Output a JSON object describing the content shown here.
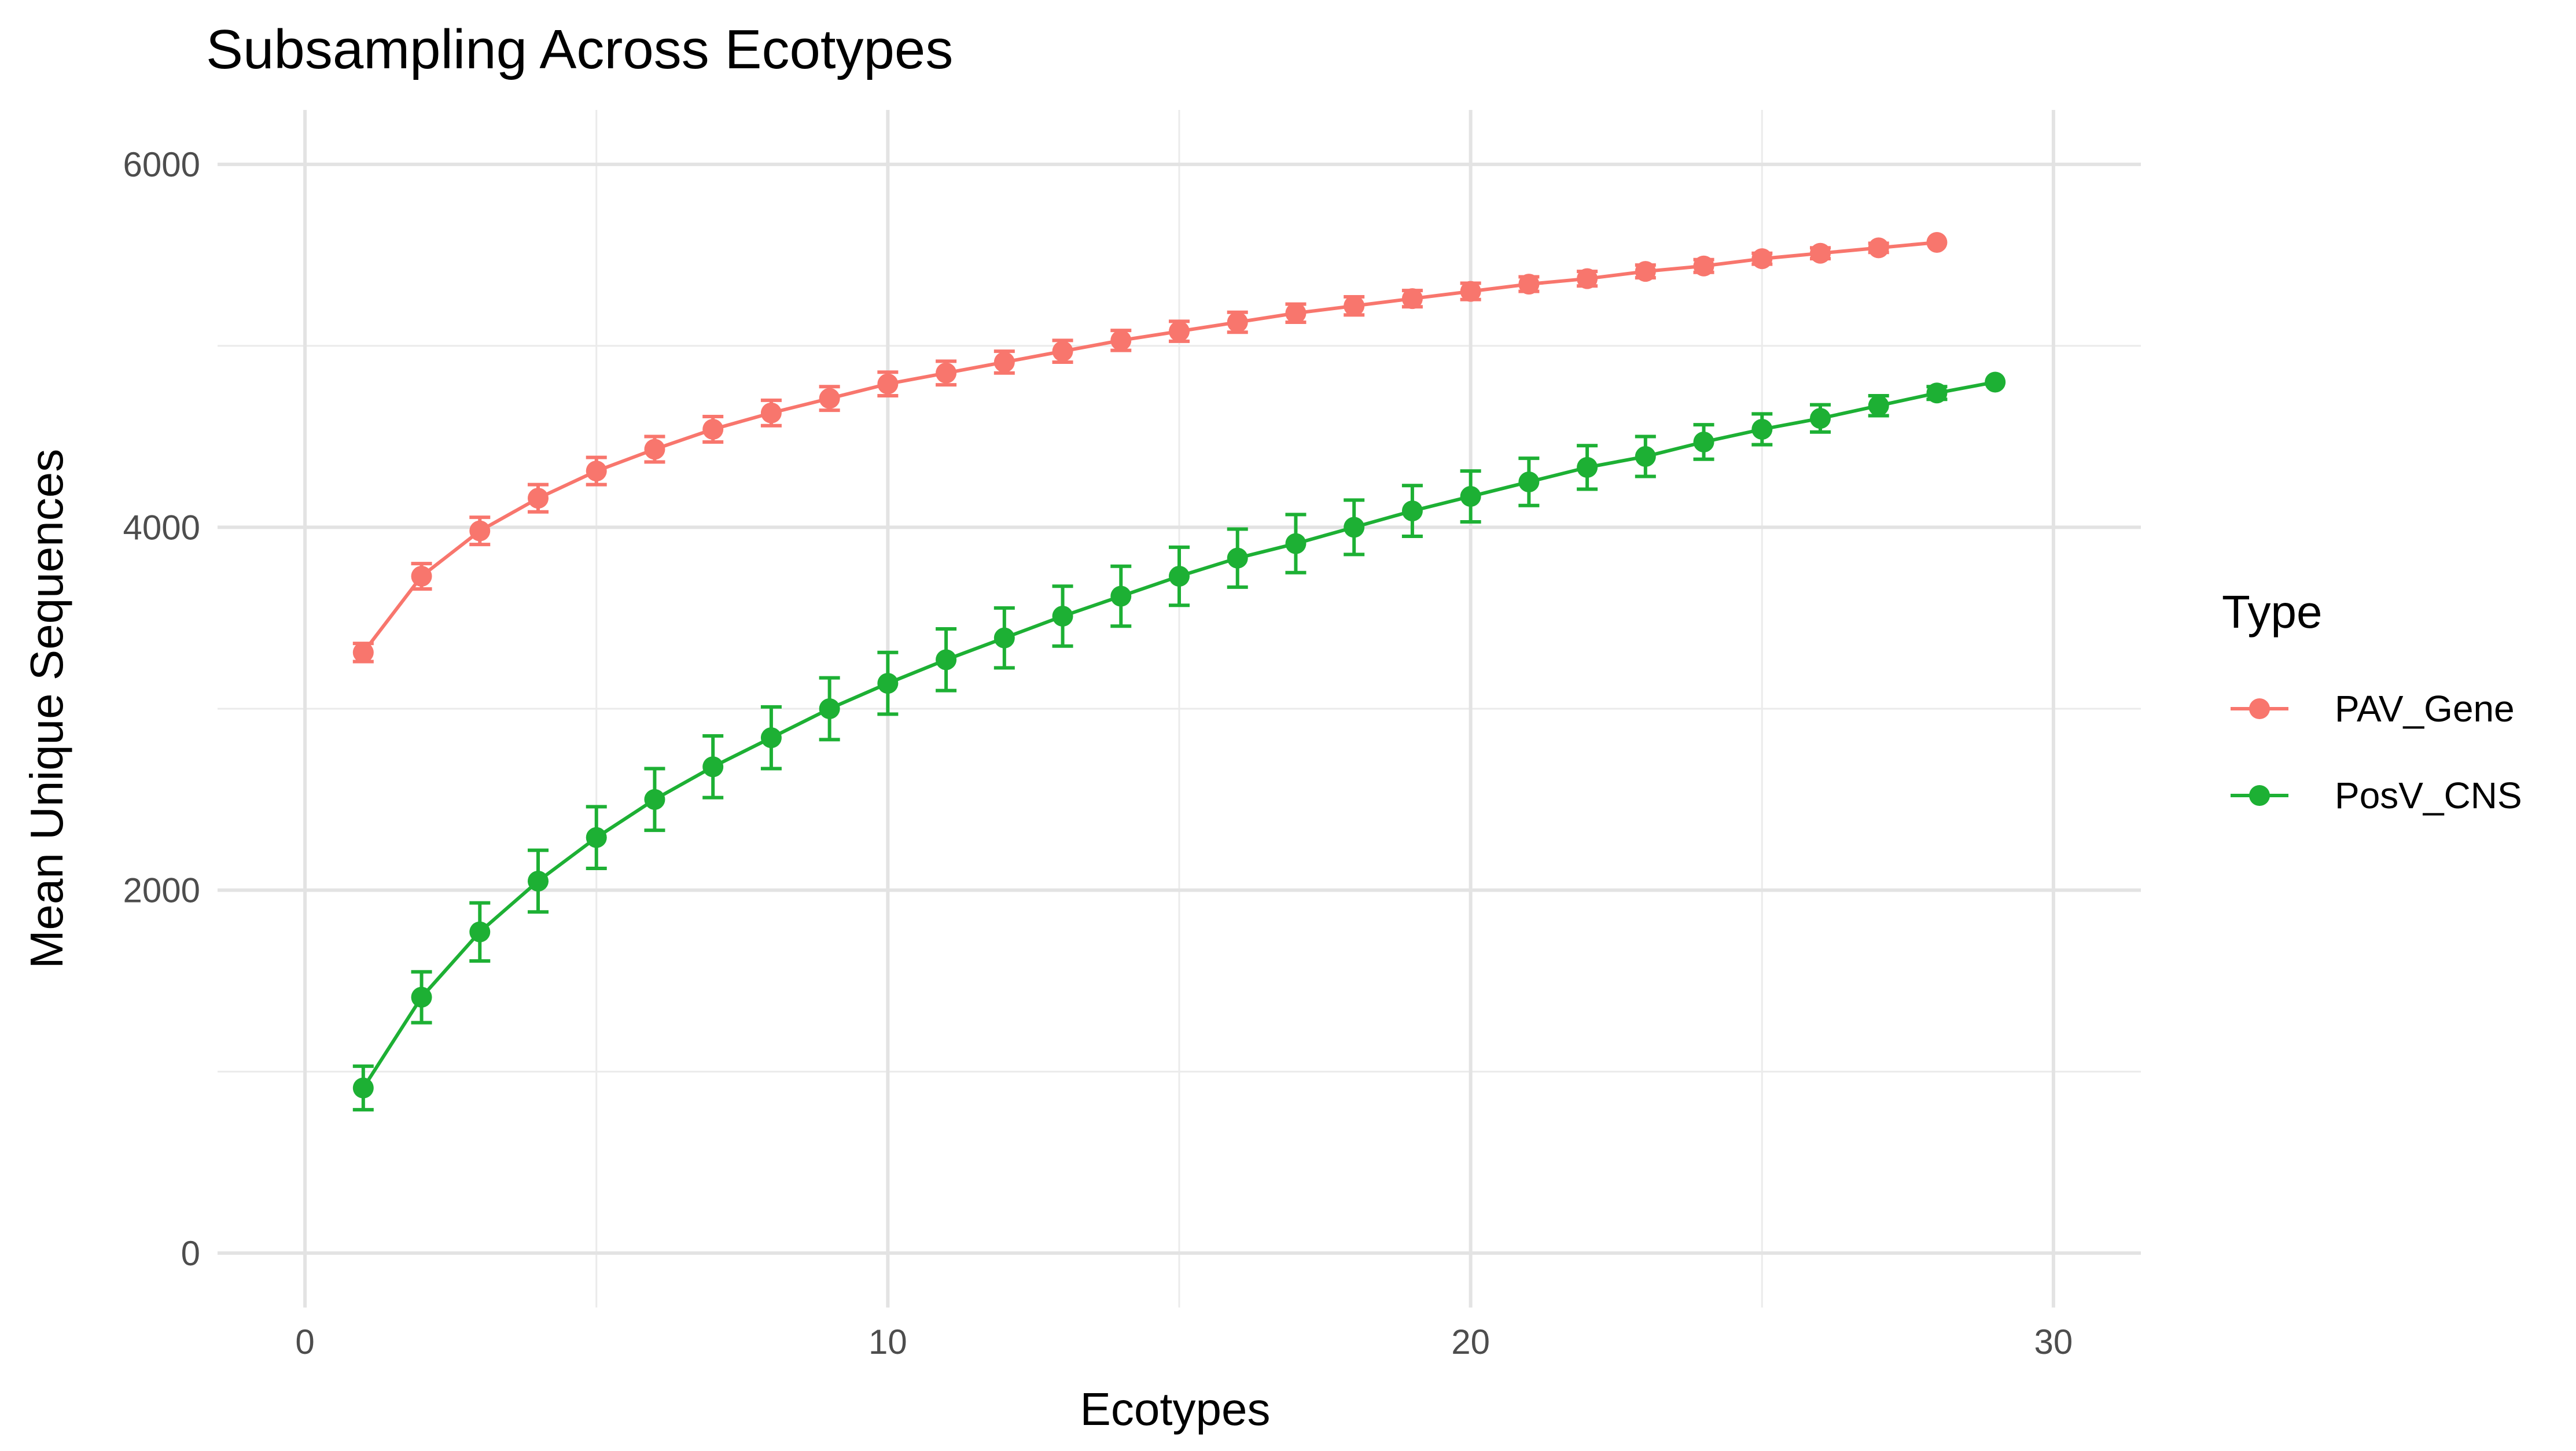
{
  "chart_data": {
    "type": "line",
    "title": "Subsampling Across Ecotypes",
    "xlabel": "Ecotypes",
    "ylabel": "Mean Unique Sequences",
    "xlim": [
      -1.5,
      31.5
    ],
    "ylim": [
      -300,
      6300
    ],
    "x_ticks": [
      0,
      10,
      20,
      30
    ],
    "y_ticks": [
      0,
      2000,
      4000,
      6000
    ],
    "x_tick_labels": [
      "0",
      "10",
      "20",
      "30"
    ],
    "y_tick_labels": [
      "0",
      "2000",
      "4000",
      "6000"
    ],
    "grid": true,
    "legend": {
      "title": "Type",
      "position": "right"
    },
    "series": [
      {
        "name": "PAV_Gene",
        "color": "#F8766D",
        "x": [
          1,
          2,
          3,
          4,
          5,
          6,
          7,
          8,
          9,
          10,
          11,
          12,
          13,
          14,
          15,
          16,
          17,
          18,
          19,
          20,
          21,
          22,
          23,
          24,
          25,
          26,
          27,
          28
        ],
        "y": [
          3310,
          3730,
          3980,
          4160,
          4310,
          4430,
          4540,
          4630,
          4710,
          4790,
          4850,
          4910,
          4970,
          5030,
          5080,
          5130,
          5180,
          5220,
          5260,
          5300,
          5340,
          5370,
          5410,
          5440,
          5480,
          5510,
          5540,
          5570
        ],
        "err": [
          50,
          70,
          75,
          75,
          75,
          70,
          70,
          70,
          65,
          65,
          65,
          60,
          60,
          55,
          55,
          55,
          50,
          50,
          45,
          45,
          40,
          40,
          35,
          35,
          30,
          30,
          25,
          0
        ]
      },
      {
        "name": "PosV_CNS",
        "color": "#1DB034",
        "x": [
          1,
          2,
          3,
          4,
          5,
          6,
          7,
          8,
          9,
          10,
          11,
          12,
          13,
          14,
          15,
          16,
          17,
          18,
          19,
          20,
          21,
          22,
          23,
          24,
          25,
          26,
          27,
          28,
          29
        ],
        "y": [
          910,
          1410,
          1770,
          2050,
          2290,
          2500,
          2680,
          2840,
          3000,
          3140,
          3270,
          3390,
          3510,
          3620,
          3730,
          3830,
          3910,
          4000,
          4090,
          4170,
          4250,
          4330,
          4390,
          4470,
          4540,
          4600,
          4670,
          4740,
          4800
        ],
        "err": [
          120,
          140,
          160,
          170,
          170,
          170,
          170,
          170,
          170,
          170,
          170,
          165,
          165,
          165,
          160,
          160,
          160,
          150,
          140,
          140,
          130,
          120,
          110,
          95,
          85,
          75,
          55,
          35,
          0
        ]
      }
    ]
  }
}
